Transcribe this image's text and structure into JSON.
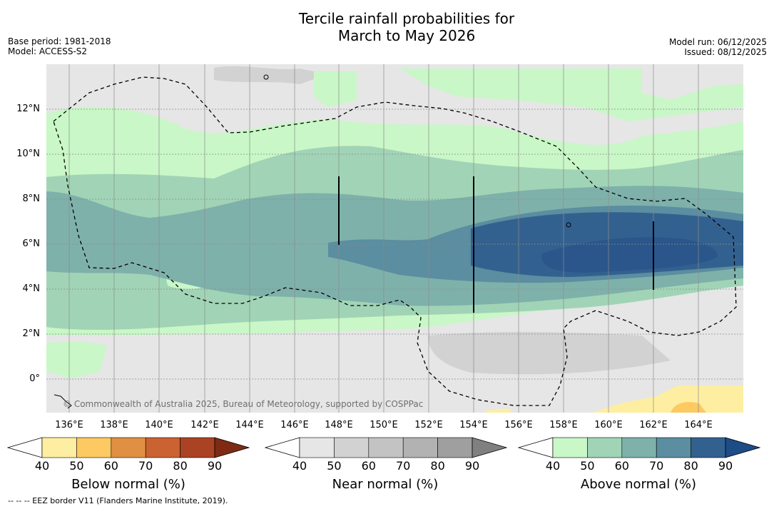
{
  "title": {
    "line1": "Tercile rainfall probabilities for",
    "line2": "March to May 2026"
  },
  "meta_left": {
    "base_period": "Base period: 1981-2018",
    "model": "Model: ACCESS-S2"
  },
  "meta_right": {
    "model_run": "Model run: 06/12/2025",
    "issued": "Issued: 08/12/2025"
  },
  "copyright": "© Commonwealth of Australia 2025, Bureau of Meteorology, supported by COSPPac",
  "lon_labels": [
    "136°E",
    "138°E",
    "140°E",
    "142°E",
    "144°E",
    "146°E",
    "148°E",
    "150°E",
    "152°E",
    "154°E",
    "156°E",
    "158°E",
    "160°E",
    "162°E",
    "164°E"
  ],
  "lat_labels": [
    "12°N",
    "10°N",
    "8°N",
    "6°N",
    "4°N",
    "2°N",
    "0°"
  ],
  "colorbars": {
    "below": {
      "title": "Below normal (%)",
      "ticks": [
        "40",
        "50",
        "60",
        "70",
        "80",
        "90"
      ],
      "colors": [
        "#ffffff",
        "#fdeea1",
        "#fcc962",
        "#e09043",
        "#cb6232",
        "#aa4324",
        "#7e2a14"
      ]
    },
    "near": {
      "title": "Near normal (%)",
      "ticks": [
        "40",
        "50",
        "60",
        "70",
        "80",
        "90"
      ],
      "colors": [
        "#ffffff",
        "#e6e6e6",
        "#d2d2d2",
        "#c3c3c3",
        "#b2b2b2",
        "#9f9f9f",
        "#808080"
      ]
    },
    "above": {
      "title": "Above normal (%)",
      "ticks": [
        "40",
        "50",
        "60",
        "70",
        "80",
        "90"
      ],
      "colors": [
        "#ffffff",
        "#c9f7c7",
        "#a1d4b6",
        "#7fb1ab",
        "#5a8ea0",
        "#33618f",
        "#1d4c86"
      ]
    }
  },
  "footer": "--  --  -- EEZ border V11 (Flanders Marine Institute, 2019)."
}
